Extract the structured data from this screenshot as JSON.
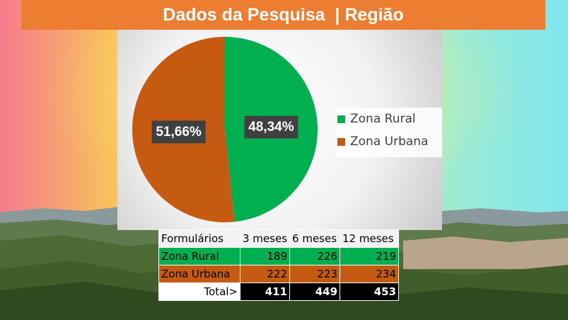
{
  "header": {
    "title": "Dados da Pesquisa  | Região"
  },
  "colors": {
    "rural": "#00b050",
    "urbana": "#c55a11",
    "title_bar": "#ed7d31"
  },
  "chart_data": {
    "type": "pie",
    "categories": [
      "Zona Rural",
      "Zona Urbana"
    ],
    "values": [
      48.34,
      51.66
    ],
    "labels": [
      "48,34%",
      "51,66%"
    ],
    "legend": [
      "Zona Rural",
      "Zona Urbana"
    ],
    "legend_position": "right"
  },
  "table": {
    "headers": [
      "Formulários",
      "3 meses",
      "6 meses",
      "12 meses"
    ],
    "rows": [
      {
        "label": "Zona Rural",
        "values": [
          "189",
          "226",
          "219"
        ]
      },
      {
        "label": "Zona Urbana",
        "values": [
          "222",
          "223",
          "234"
        ]
      }
    ],
    "total": {
      "label": "Total>",
      "values": [
        "411",
        "449",
        "453"
      ]
    }
  }
}
